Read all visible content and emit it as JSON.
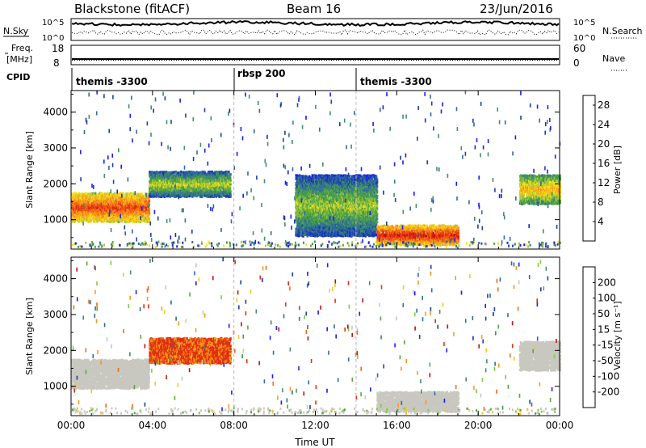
{
  "header": {
    "station": "Blackstone (fitACF)",
    "beam": "Beam 16",
    "date": "23/Jun/2016"
  },
  "top_panels": {
    "nsky_label": "N.Sky",
    "nsky_ticks": [
      "10^5",
      "10^0"
    ],
    "nsearch_label": "N.Search",
    "freq_label_1": "Freq.",
    "freq_label_2": "[MHz]",
    "freq_ticks": [
      "18",
      "8"
    ],
    "nave_label": "Nave",
    "nave_ticks": [
      "60",
      "0"
    ],
    "cpid_label": "CPID",
    "cpid_segments": [
      {
        "label": "themis -3300",
        "start_hour": 0
      },
      {
        "label": "rbsp 200",
        "start_hour": 8
      },
      {
        "label": "themis -3300",
        "start_hour": 14
      }
    ]
  },
  "colors": {
    "power": [
      "#1a1aff",
      "#1c3ea8",
      "#2f6aa0",
      "#3d8f66",
      "#55a83c",
      "#a8c83a",
      "#f5e01a",
      "#f5b41a",
      "#f58a1a",
      "#f05a14",
      "#e02a10",
      "#c40c0c"
    ],
    "velocity": [
      "#1a1aff",
      "#1c3ea8",
      "#2f6aa0",
      "#3d8f66",
      "#55a83c",
      "#7ccc44",
      "#c8c8c0",
      "#f5c81a",
      "#f59a1a",
      "#f06a14",
      "#e03010",
      "#c40c0c"
    ],
    "ground_scatter": "#c8c8c0"
  },
  "chart_data": [
    {
      "type": "heatmap",
      "name": "power",
      "ylabel": "Slant Range [km]",
      "xlabel": "",
      "xlim": [
        0,
        24
      ],
      "ylim": [
        180,
        4600
      ],
      "x_ticks": [
        "00:00",
        "04:00",
        "08:00",
        "12:00",
        "16:00",
        "20:00",
        "00:00"
      ],
      "y_ticks": [
        1000,
        2000,
        3000,
        4000
      ],
      "colorbar_label": "Power [dB]",
      "colorbar_ticks": [
        4,
        8,
        12,
        16,
        20,
        24,
        28
      ],
      "colorbar_range": [
        0,
        30
      ],
      "features": [
        {
          "t_start": 0.0,
          "t_end": 3.8,
          "range_start": 900,
          "range_end": 1700,
          "value": 16
        },
        {
          "t_start": 3.8,
          "t_end": 7.8,
          "range_start": 1600,
          "range_end": 2300,
          "value": 6
        },
        {
          "t_start": 11.0,
          "t_end": 15.0,
          "range_start": 500,
          "range_end": 2200,
          "value": 5
        },
        {
          "t_start": 15.0,
          "t_end": 19.0,
          "range_start": 250,
          "range_end": 800,
          "value": 18
        },
        {
          "t_start": 22.0,
          "t_end": 24.0,
          "range_start": 1400,
          "range_end": 2200,
          "value": 10
        }
      ]
    },
    {
      "type": "heatmap",
      "name": "velocity",
      "ylabel": "Slant Range [km]",
      "xlabel": "Time UT",
      "xlim": [
        0,
        24
      ],
      "ylim": [
        180,
        4600
      ],
      "x_ticks": [
        "00:00",
        "04:00",
        "08:00",
        "12:00",
        "16:00",
        "20:00",
        "00:00"
      ],
      "y_ticks": [
        1000,
        2000,
        3000,
        4000
      ],
      "colorbar_label": "Velocity [m s⁻¹]",
      "colorbar_ticks": [
        200,
        100,
        50,
        15,
        -15,
        -50,
        -100,
        -200
      ],
      "features": [
        {
          "t_start": 0.0,
          "t_end": 3.8,
          "range_start": 900,
          "range_end": 1700,
          "value": 0
        },
        {
          "t_start": 3.8,
          "t_end": 7.8,
          "range_start": 1600,
          "range_end": 2300,
          "value": -120
        },
        {
          "t_start": 15.0,
          "t_end": 19.0,
          "range_start": 250,
          "range_end": 800,
          "value": 0
        },
        {
          "t_start": 22.0,
          "t_end": 24.0,
          "range_start": 1400,
          "range_end": 2200,
          "value": 0
        }
      ]
    }
  ]
}
